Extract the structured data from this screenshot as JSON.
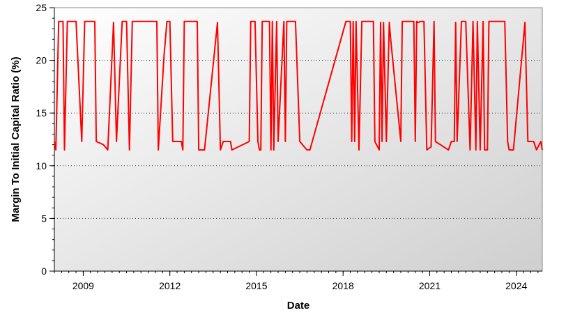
{
  "chart_data": {
    "type": "line",
    "title": "",
    "xlabel": "Date",
    "ylabel": "Margin To Initial Capital Ratio (%)",
    "xlim": [
      2008.0,
      2024.9
    ],
    "ylim": [
      0,
      25
    ],
    "x_ticks": [
      {
        "value": 2009,
        "label": "2009"
      },
      {
        "value": 2012,
        "label": "2012"
      },
      {
        "value": 2015,
        "label": "2015"
      },
      {
        "value": 2018,
        "label": "2018"
      },
      {
        "value": 2021,
        "label": "2021"
      },
      {
        "value": 2024,
        "label": "2024"
      }
    ],
    "y_ticks": [
      {
        "value": 0,
        "label": "0"
      },
      {
        "value": 5,
        "label": "5"
      },
      {
        "value": 10,
        "label": "10"
      },
      {
        "value": 15,
        "label": "15"
      },
      {
        "value": 20,
        "label": "20"
      },
      {
        "value": 25,
        "label": "25"
      }
    ],
    "grid": "horizontal-dotted",
    "background": "gradient-white-to-gray",
    "series": [
      {
        "color": "#ff0000",
        "points": [
          [
            2008.0,
            12.3
          ],
          [
            2008.05,
            11.5
          ],
          [
            2008.15,
            23.7
          ],
          [
            2008.3,
            23.7
          ],
          [
            2008.35,
            11.5
          ],
          [
            2008.45,
            23.7
          ],
          [
            2008.75,
            23.7
          ],
          [
            2008.95,
            12.3
          ],
          [
            2009.05,
            23.7
          ],
          [
            2009.4,
            23.7
          ],
          [
            2009.45,
            12.3
          ],
          [
            2009.7,
            12.0
          ],
          [
            2009.85,
            11.5
          ],
          [
            2010.05,
            23.6
          ],
          [
            2010.15,
            12.3
          ],
          [
            2010.35,
            23.7
          ],
          [
            2010.5,
            23.7
          ],
          [
            2010.6,
            11.5
          ],
          [
            2010.7,
            23.7
          ],
          [
            2011.55,
            23.7
          ],
          [
            2011.6,
            11.5
          ],
          [
            2011.8,
            20.5
          ],
          [
            2011.9,
            23.7
          ],
          [
            2012.0,
            23.7
          ],
          [
            2012.1,
            12.3
          ],
          [
            2012.4,
            12.3
          ],
          [
            2012.45,
            11.5
          ],
          [
            2012.5,
            23.7
          ],
          [
            2012.95,
            23.7
          ],
          [
            2013.0,
            11.5
          ],
          [
            2013.2,
            11.5
          ],
          [
            2013.65,
            23.6
          ],
          [
            2013.75,
            11.5
          ],
          [
            2013.85,
            12.3
          ],
          [
            2014.1,
            12.3
          ],
          [
            2014.15,
            11.5
          ],
          [
            2014.75,
            12.3
          ],
          [
            2014.8,
            23.7
          ],
          [
            2014.95,
            23.7
          ],
          [
            2015.05,
            12.3
          ],
          [
            2015.1,
            11.5
          ],
          [
            2015.15,
            11.5
          ],
          [
            2015.2,
            23.7
          ],
          [
            2015.45,
            23.7
          ],
          [
            2015.5,
            11.5
          ],
          [
            2015.55,
            23.7
          ],
          [
            2015.6,
            11.5
          ],
          [
            2015.7,
            23.7
          ],
          [
            2015.75,
            12.3
          ],
          [
            2015.95,
            23.7
          ],
          [
            2016.0,
            12.3
          ],
          [
            2016.05,
            23.7
          ],
          [
            2016.35,
            23.7
          ],
          [
            2016.5,
            12.3
          ],
          [
            2016.75,
            11.5
          ],
          [
            2016.85,
            11.5
          ],
          [
            2018.1,
            23.7
          ],
          [
            2018.25,
            23.7
          ],
          [
            2018.3,
            12.3
          ],
          [
            2018.35,
            23.7
          ],
          [
            2018.4,
            12.3
          ],
          [
            2018.45,
            23.7
          ],
          [
            2018.55,
            11.5
          ],
          [
            2018.65,
            23.7
          ],
          [
            2019.05,
            23.7
          ],
          [
            2019.1,
            12.3
          ],
          [
            2019.25,
            11.5
          ],
          [
            2019.3,
            23.6
          ],
          [
            2019.35,
            12.3
          ],
          [
            2019.4,
            23.6
          ],
          [
            2019.5,
            12.3
          ],
          [
            2019.6,
            23.6
          ],
          [
            2019.65,
            22.0
          ],
          [
            2020.0,
            12.3
          ],
          [
            2020.05,
            23.7
          ],
          [
            2020.45,
            23.7
          ],
          [
            2020.5,
            12.3
          ],
          [
            2020.55,
            23.7
          ],
          [
            2020.6,
            23.6
          ],
          [
            2020.7,
            23.7
          ],
          [
            2020.8,
            23.7
          ],
          [
            2020.9,
            11.5
          ],
          [
            2021.05,
            11.8
          ],
          [
            2021.15,
            23.7
          ],
          [
            2021.2,
            12.3
          ],
          [
            2021.65,
            11.5
          ],
          [
            2021.75,
            12.3
          ],
          [
            2021.85,
            12.3
          ],
          [
            2021.9,
            23.6
          ],
          [
            2021.95,
            12.3
          ],
          [
            2022.1,
            23.7
          ],
          [
            2022.25,
            23.7
          ],
          [
            2022.4,
            11.5
          ],
          [
            2022.5,
            23.7
          ],
          [
            2022.6,
            11.5
          ],
          [
            2022.65,
            23.7
          ],
          [
            2022.75,
            11.5
          ],
          [
            2022.85,
            23.7
          ],
          [
            2022.9,
            11.5
          ],
          [
            2023.0,
            11.5
          ],
          [
            2023.05,
            23.7
          ],
          [
            2023.6,
            23.7
          ],
          [
            2023.7,
            12.3
          ],
          [
            2023.75,
            11.5
          ],
          [
            2023.9,
            11.5
          ],
          [
            2024.3,
            23.6
          ],
          [
            2024.4,
            12.3
          ],
          [
            2024.6,
            12.3
          ],
          [
            2024.7,
            11.5
          ],
          [
            2024.85,
            12.3
          ],
          [
            2024.9,
            11.5
          ]
        ]
      }
    ]
  }
}
